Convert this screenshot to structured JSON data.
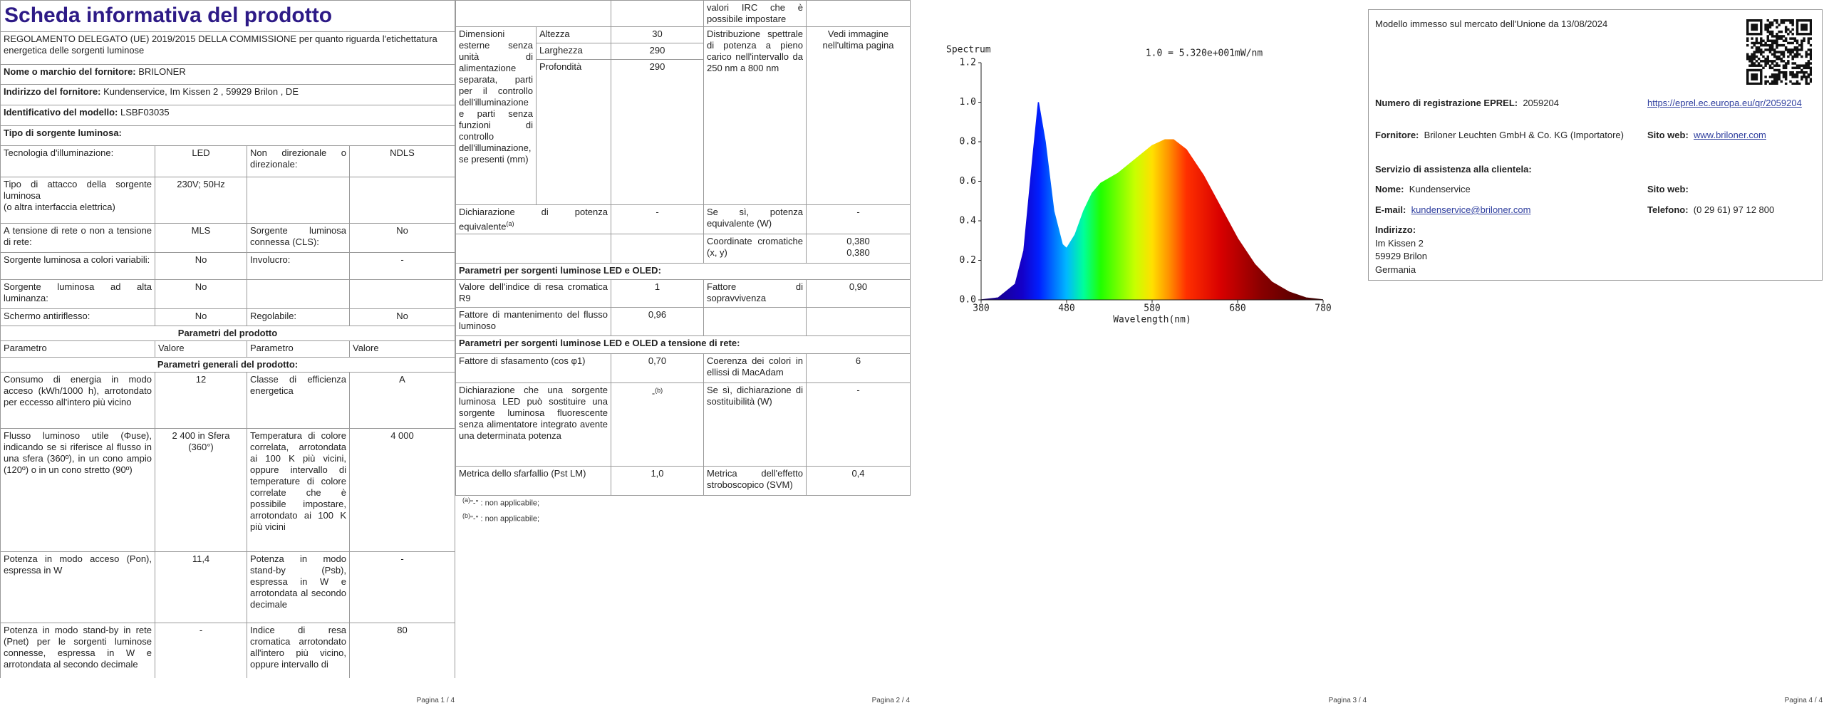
{
  "page1": {
    "title": "Scheda informativa del prodotto",
    "regulation": "REGOLAMENTO DELEGATO (UE) 2019/2015 DELLA COMMISSIONE per quanto riguarda l'etichettatura energetica delle sorgenti luminose",
    "rows": [
      [
        "Nome o marchio del fornitore:",
        "BRILONER"
      ],
      [
        "Indirizzo del fornitore:",
        "Kundenservice, Im Kissen 2 , 59929 Brilon , DE"
      ],
      [
        "Identificativo del modello:",
        "LSBF03035"
      ],
      [
        "Tipo di sorgente luminosa:"
      ],
      [
        "Tecnologia d'illuminazione:",
        "LED",
        "Non direzionale o direzionale:",
        "NDLS"
      ],
      [
        "Tipo di attacco della sorgente luminosa",
        "(o altra interfaccia elettrica)",
        "230V; 50Hz"
      ],
      [
        "A tensione di rete o non a tensione di rete:",
        "MLS",
        "Sorgente luminosa connessa (CLS):",
        "No"
      ],
      [
        "Sorgente luminosa a colori variabili:",
        "No",
        "Involucro:",
        "-"
      ],
      [
        "Sorgente luminosa ad alta luminanza:",
        "No"
      ],
      [
        "Schermo antiriflesso:",
        "No",
        "Regolabile:",
        "No"
      ],
      [
        "Parametri del prodotto"
      ],
      [
        "Parametro",
        "Valore",
        "Parametro",
        "Valore"
      ],
      [
        "Parametri generali del prodotto:"
      ],
      [
        "Consumo di energia in modo acceso (kWh/1000 h), arrotondato per eccesso all'intero più vicino",
        "12",
        "Classe di efficienza energetica",
        "A"
      ],
      [
        "Flusso luminoso utile (Φuse), indicando se si riferisce al flusso in una sfera (360º), in un cono ampio (120º) o in un cono stretto (90º)",
        "2 400 in Sfera (360°)",
        "Temperatura di colore correlata, arrotondata ai 100 K più vicini, oppure intervallo di temperature di colore correlate che è possibile impostare, arrotondato ai 100 K più vicini",
        "4 000"
      ],
      [
        "Potenza in modo acceso (Pon), espressa in W",
        "11,4",
        "Potenza in modo stand-by (Psb), espressa in W e arrotondata al secondo decimale",
        "-"
      ],
      [
        "Potenza in modo stand-by in rete (Pnet) per le sorgenti luminose connesse, espressa in W e arrotondata al secondo decimale",
        "-",
        "Indice di resa cromatica arrotondato all'intero più vicino, oppure intervallo di",
        "80"
      ]
    ]
  },
  "page2": {
    "continuation": "valori IRC che è possibile impostare",
    "dimensions": {
      "label": "Dimensioni esterne senza unità di alimentazione separata, parti per il controllo dell'illuminazione e parti senza funzioni di controllo dell'illuminazione, se presenti (mm)",
      "items": [
        [
          "Altezza",
          "30"
        ],
        [
          "Larghezza",
          "290"
        ],
        [
          "Profondità",
          "290"
        ]
      ],
      "label2": "Distribuzione spettrale di potenza a pieno carico nell'intervallo da 250 nm a 800 nm",
      "value2": "Vedi immagine nell'ultima pagina"
    },
    "equivalent": {
      "label": "Dichiarazione di potenza equivalente",
      "note": "(a)",
      "value": "-",
      "label2": "Se sì, potenza equivalente (W)",
      "value2": "-"
    },
    "chromaticity": {
      "label": "Coordinate cromatiche (x, y)",
      "values": [
        "0,380",
        "0,380"
      ]
    },
    "section_led": "Parametri per sorgenti luminose LED e OLED:",
    "led_rows": [
      [
        "Valore dell'indice di resa cromatica R9",
        "1",
        "Fattore di sopravvivenza",
        "0,90"
      ],
      [
        "Fattore di mantenimento del flusso luminoso",
        "0,96"
      ]
    ],
    "section_mains": "Parametri per sorgenti luminose LED e OLED a tensione di rete:",
    "mains_rows": [
      [
        "Fattore di sfasamento (cos φ1)",
        "0,70",
        "Coerenza dei colori in ellissi di MacAdam",
        "6"
      ],
      [
        "Dichiarazione che una sorgente luminosa LED può sostituire una sorgente luminosa fluorescente senza alimentatore integrato avente una determinata potenza",
        "-",
        "(b)",
        "Se sì, dichiarazione di sostituibilità (W)",
        "-"
      ],
      [
        "Metrica dello sfarfallio (Pst LM)",
        "1,0",
        "Metrica dell'effetto stroboscopico (SVM)",
        "0,4"
      ]
    ],
    "footnotes": [
      [
        "(a)",
        "\"-\" : non applicabile;"
      ],
      [
        "(b)",
        "\"-\" : non applicabile;"
      ]
    ]
  },
  "chart_data": {
    "type": "area",
    "y_label": "Spectrum",
    "x_label": "Wavelength(nm)",
    "annotation": "1.0 = 5.320e+001mW/nm",
    "x": [
      380,
      400,
      420,
      430,
      440,
      447,
      455,
      465,
      475,
      480,
      490,
      500,
      510,
      520,
      540,
      560,
      580,
      595,
      605,
      620,
      640,
      660,
      680,
      700,
      720,
      740,
      760,
      780
    ],
    "values": [
      0,
      0.01,
      0.08,
      0.25,
      0.7,
      1.0,
      0.8,
      0.45,
      0.28,
      0.26,
      0.33,
      0.45,
      0.54,
      0.59,
      0.64,
      0.71,
      0.78,
      0.81,
      0.81,
      0.76,
      0.63,
      0.47,
      0.31,
      0.18,
      0.09,
      0.04,
      0.01,
      0
    ],
    "xlim": [
      380,
      780
    ],
    "ylim": [
      0,
      1.2
    ],
    "xticks": [
      380,
      480,
      580,
      680,
      780
    ],
    "yticks": [
      {
        "value": 0,
        "label": "0.0"
      },
      {
        "value": 0.2,
        "label": "0.2"
      },
      {
        "value": 0.4,
        "label": "0.4"
      },
      {
        "value": 0.6,
        "label": "0.6"
      },
      {
        "value": 0.8,
        "label": "0.8"
      },
      {
        "value": 1.0,
        "label": "1.0"
      },
      {
        "value": 1.2,
        "label": "1.2"
      }
    ]
  },
  "page4": {
    "market": "Modello immesso sul mercato dell'Unione da 13/08/2024",
    "eprel": {
      "label": "Numero di registrazione EPREL:",
      "value": "2059204",
      "link": "https://eprel.ec.europa.eu/qr/2059204"
    },
    "supplier": {
      "label": "Fornitore:",
      "value": "Briloner Leuchten GmbH & Co. KG (Importatore)"
    },
    "website": {
      "label": "Sito web:",
      "value": "www.briloner.com"
    },
    "service": "Servizio di assistenza alla clientela:",
    "name": {
      "label": "Nome:",
      "value": "Kundenservice"
    },
    "service_website": {
      "label": "Sito web:"
    },
    "email": {
      "label": "E-mail:",
      "value": "kundenservice@briloner.com"
    },
    "phone": {
      "label": "Telefono:",
      "value": "(0 29 61) 97 12 800"
    },
    "address": {
      "label": "Indirizzo:",
      "lines": [
        "Im Kissen 2",
        "59929 Brilon",
        "Germania"
      ]
    }
  },
  "footers": [
    "Pagina 1 / 4",
    "Pagina 2 / 4",
    "Pagina 3 / 4",
    "Pagina 4 / 4"
  ]
}
